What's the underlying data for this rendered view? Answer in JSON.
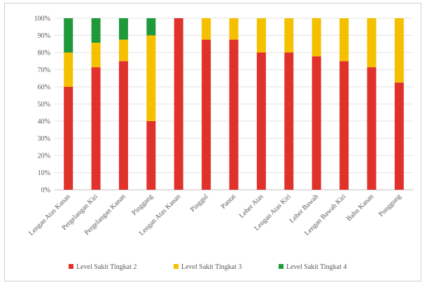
{
  "chart_data": {
    "type": "bar",
    "stacked": "percent",
    "title": "",
    "xlabel": "",
    "ylabel": "",
    "ylim": [
      0,
      100
    ],
    "yticks": [
      "0%",
      "10%",
      "20%",
      "30%",
      "40%",
      "50%",
      "60%",
      "70%",
      "80%",
      "90%",
      "100%"
    ],
    "grid": true,
    "legend_position": "bottom",
    "categories": [
      "Lengan Atas Kanan",
      "Pergelangan Kiri",
      "Pergelangan Kanan",
      "Pinggang",
      "Lengan Atas Kanan",
      "Pinggul",
      "Pantat",
      "Leher Atas",
      "Lengan Atas Kiri",
      "Leher Bawah",
      "Lengan Bawah Kiri",
      "Bahu Kanan",
      "Punggung"
    ],
    "series": [
      {
        "name": "Level Sakit Tingkat 2",
        "color": "#e0322b",
        "values": [
          60,
          71.4,
          75,
          40,
          100,
          87.5,
          87.5,
          80,
          80,
          77.8,
          75,
          71.4,
          62.5
        ]
      },
      {
        "name": "Level Sakit Tingkat 3",
        "color": "#f5c000",
        "values": [
          20,
          14.3,
          12.5,
          50,
          0,
          12.5,
          12.5,
          20,
          20,
          22.2,
          25,
          28.6,
          37.5
        ]
      },
      {
        "name": "Level Sakit Tingkat 4",
        "color": "#1f9a3a",
        "values": [
          20,
          14.3,
          12.5,
          10,
          0,
          0,
          0,
          0,
          0,
          0,
          0,
          0,
          0
        ]
      }
    ]
  }
}
